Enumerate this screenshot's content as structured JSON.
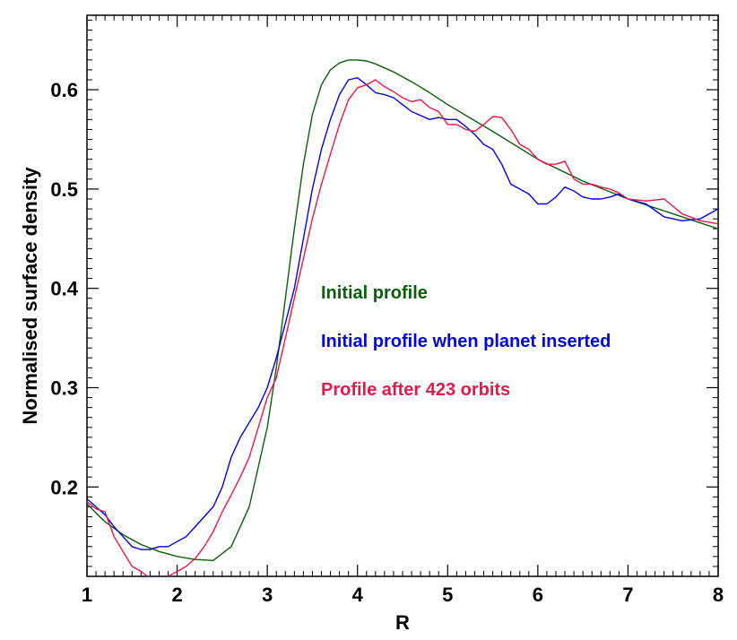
{
  "chart_data": {
    "type": "line",
    "title": "",
    "xlabel": "R",
    "ylabel": "Normalised surface density",
    "xlim": [
      1,
      8
    ],
    "ylim": [
      0.11,
      0.675
    ],
    "xticks": [
      1,
      2,
      3,
      4,
      5,
      6,
      7,
      8
    ],
    "yticks": [
      0.2,
      0.3,
      0.4,
      0.5,
      0.6
    ],
    "ytick_labels": [
      "0.2",
      "0.3",
      "0.4",
      "0.5",
      "0.6"
    ],
    "grid": false,
    "legend_position": "center-right",
    "series": [
      {
        "name": "Initial profile",
        "color": "#0b5e0b",
        "x": [
          1.0,
          1.2,
          1.4,
          1.6,
          1.8,
          2.0,
          2.2,
          2.4,
          2.6,
          2.8,
          3.0,
          3.1,
          3.2,
          3.3,
          3.4,
          3.5,
          3.6,
          3.7,
          3.8,
          3.9,
          4.0,
          4.1,
          4.2,
          4.4,
          4.6,
          4.8,
          5.0,
          5.5,
          6.0,
          6.5,
          7.0,
          7.5,
          8.0
        ],
        "y": [
          0.183,
          0.165,
          0.152,
          0.142,
          0.135,
          0.13,
          0.127,
          0.126,
          0.14,
          0.18,
          0.26,
          0.32,
          0.39,
          0.46,
          0.525,
          0.575,
          0.605,
          0.62,
          0.627,
          0.63,
          0.63,
          0.629,
          0.626,
          0.618,
          0.608,
          0.597,
          0.585,
          0.558,
          0.53,
          0.508,
          0.49,
          0.475,
          0.46
        ]
      },
      {
        "name": "Initial profile when planet inserted",
        "color": "#0000ee",
        "x": [
          1.0,
          1.1,
          1.2,
          1.3,
          1.4,
          1.5,
          1.6,
          1.7,
          1.8,
          1.9,
          2.0,
          2.1,
          2.2,
          2.3,
          2.4,
          2.5,
          2.6,
          2.7,
          2.8,
          2.9,
          3.0,
          3.1,
          3.2,
          3.3,
          3.4,
          3.5,
          3.6,
          3.7,
          3.8,
          3.9,
          4.0,
          4.1,
          4.2,
          4.3,
          4.4,
          4.5,
          4.6,
          4.7,
          4.8,
          4.9,
          5.0,
          5.1,
          5.2,
          5.3,
          5.4,
          5.5,
          5.6,
          5.7,
          5.8,
          5.9,
          6.0,
          6.1,
          6.2,
          6.3,
          6.4,
          6.5,
          6.6,
          6.7,
          6.8,
          6.9,
          7.0,
          7.2,
          7.4,
          7.6,
          7.8,
          8.0
        ],
        "y": [
          0.188,
          0.18,
          0.172,
          0.16,
          0.15,
          0.14,
          0.137,
          0.137,
          0.14,
          0.14,
          0.145,
          0.15,
          0.16,
          0.17,
          0.18,
          0.2,
          0.23,
          0.25,
          0.265,
          0.28,
          0.3,
          0.33,
          0.365,
          0.4,
          0.45,
          0.5,
          0.54,
          0.57,
          0.595,
          0.61,
          0.612,
          0.605,
          0.597,
          0.595,
          0.592,
          0.585,
          0.578,
          0.574,
          0.57,
          0.572,
          0.57,
          0.57,
          0.563,
          0.555,
          0.545,
          0.54,
          0.525,
          0.505,
          0.5,
          0.495,
          0.485,
          0.485,
          0.492,
          0.502,
          0.498,
          0.492,
          0.49,
          0.49,
          0.492,
          0.495,
          0.49,
          0.485,
          0.472,
          0.468,
          0.47,
          0.48
        ]
      },
      {
        "name": "Profile after 423 orbits",
        "color": "#e8174a",
        "x": [
          1.0,
          1.1,
          1.2,
          1.3,
          1.4,
          1.5,
          1.6,
          1.7,
          1.8,
          1.9,
          2.0,
          2.1,
          2.2,
          2.3,
          2.4,
          2.5,
          2.6,
          2.7,
          2.8,
          2.9,
          3.0,
          3.1,
          3.2,
          3.3,
          3.4,
          3.5,
          3.6,
          3.7,
          3.8,
          3.9,
          4.0,
          4.1,
          4.2,
          4.3,
          4.4,
          4.5,
          4.6,
          4.7,
          4.8,
          4.9,
          5.0,
          5.1,
          5.2,
          5.3,
          5.4,
          5.5,
          5.6,
          5.7,
          5.8,
          5.9,
          6.0,
          6.1,
          6.2,
          6.3,
          6.4,
          6.5,
          6.6,
          6.7,
          6.8,
          6.9,
          7.0,
          7.2,
          7.4,
          7.6,
          7.8,
          8.0
        ],
        "y": [
          0.185,
          0.178,
          0.175,
          0.15,
          0.135,
          0.12,
          0.115,
          0.108,
          0.105,
          0.11,
          0.115,
          0.12,
          0.128,
          0.14,
          0.155,
          0.175,
          0.192,
          0.21,
          0.23,
          0.26,
          0.29,
          0.31,
          0.35,
          0.39,
          0.43,
          0.47,
          0.505,
          0.535,
          0.565,
          0.59,
          0.602,
          0.605,
          0.61,
          0.603,
          0.598,
          0.592,
          0.588,
          0.59,
          0.582,
          0.578,
          0.565,
          0.565,
          0.56,
          0.558,
          0.565,
          0.573,
          0.572,
          0.56,
          0.545,
          0.54,
          0.53,
          0.525,
          0.525,
          0.528,
          0.51,
          0.505,
          0.505,
          0.502,
          0.5,
          0.496,
          0.49,
          0.488,
          0.49,
          0.475,
          0.468,
          0.465
        ]
      }
    ]
  }
}
